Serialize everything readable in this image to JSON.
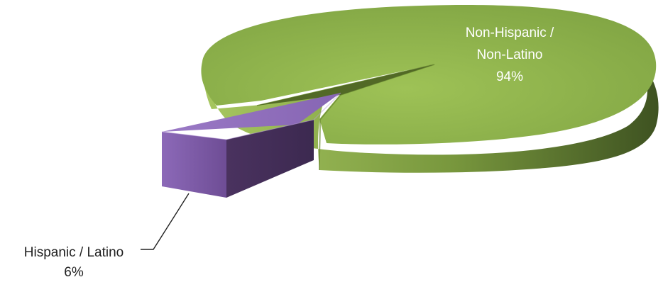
{
  "chart_data": {
    "type": "pie",
    "style": "3d-exploded",
    "series": [
      {
        "name": "",
        "slices": [
          {
            "label_lines": [
              "Non-Hispanic /",
              "Non-Latino"
            ],
            "value_text": "94%",
            "value": 94,
            "color": "#8faf4c",
            "label_placement": "inside"
          },
          {
            "label_lines": [
              "Hispanic / Latino"
            ],
            "value_text": "6%",
            "value": 6,
            "color": "#7d5aa4",
            "label_placement": "outside-leader-line",
            "exploded": true
          }
        ]
      }
    ],
    "legend": "none",
    "title": ""
  }
}
